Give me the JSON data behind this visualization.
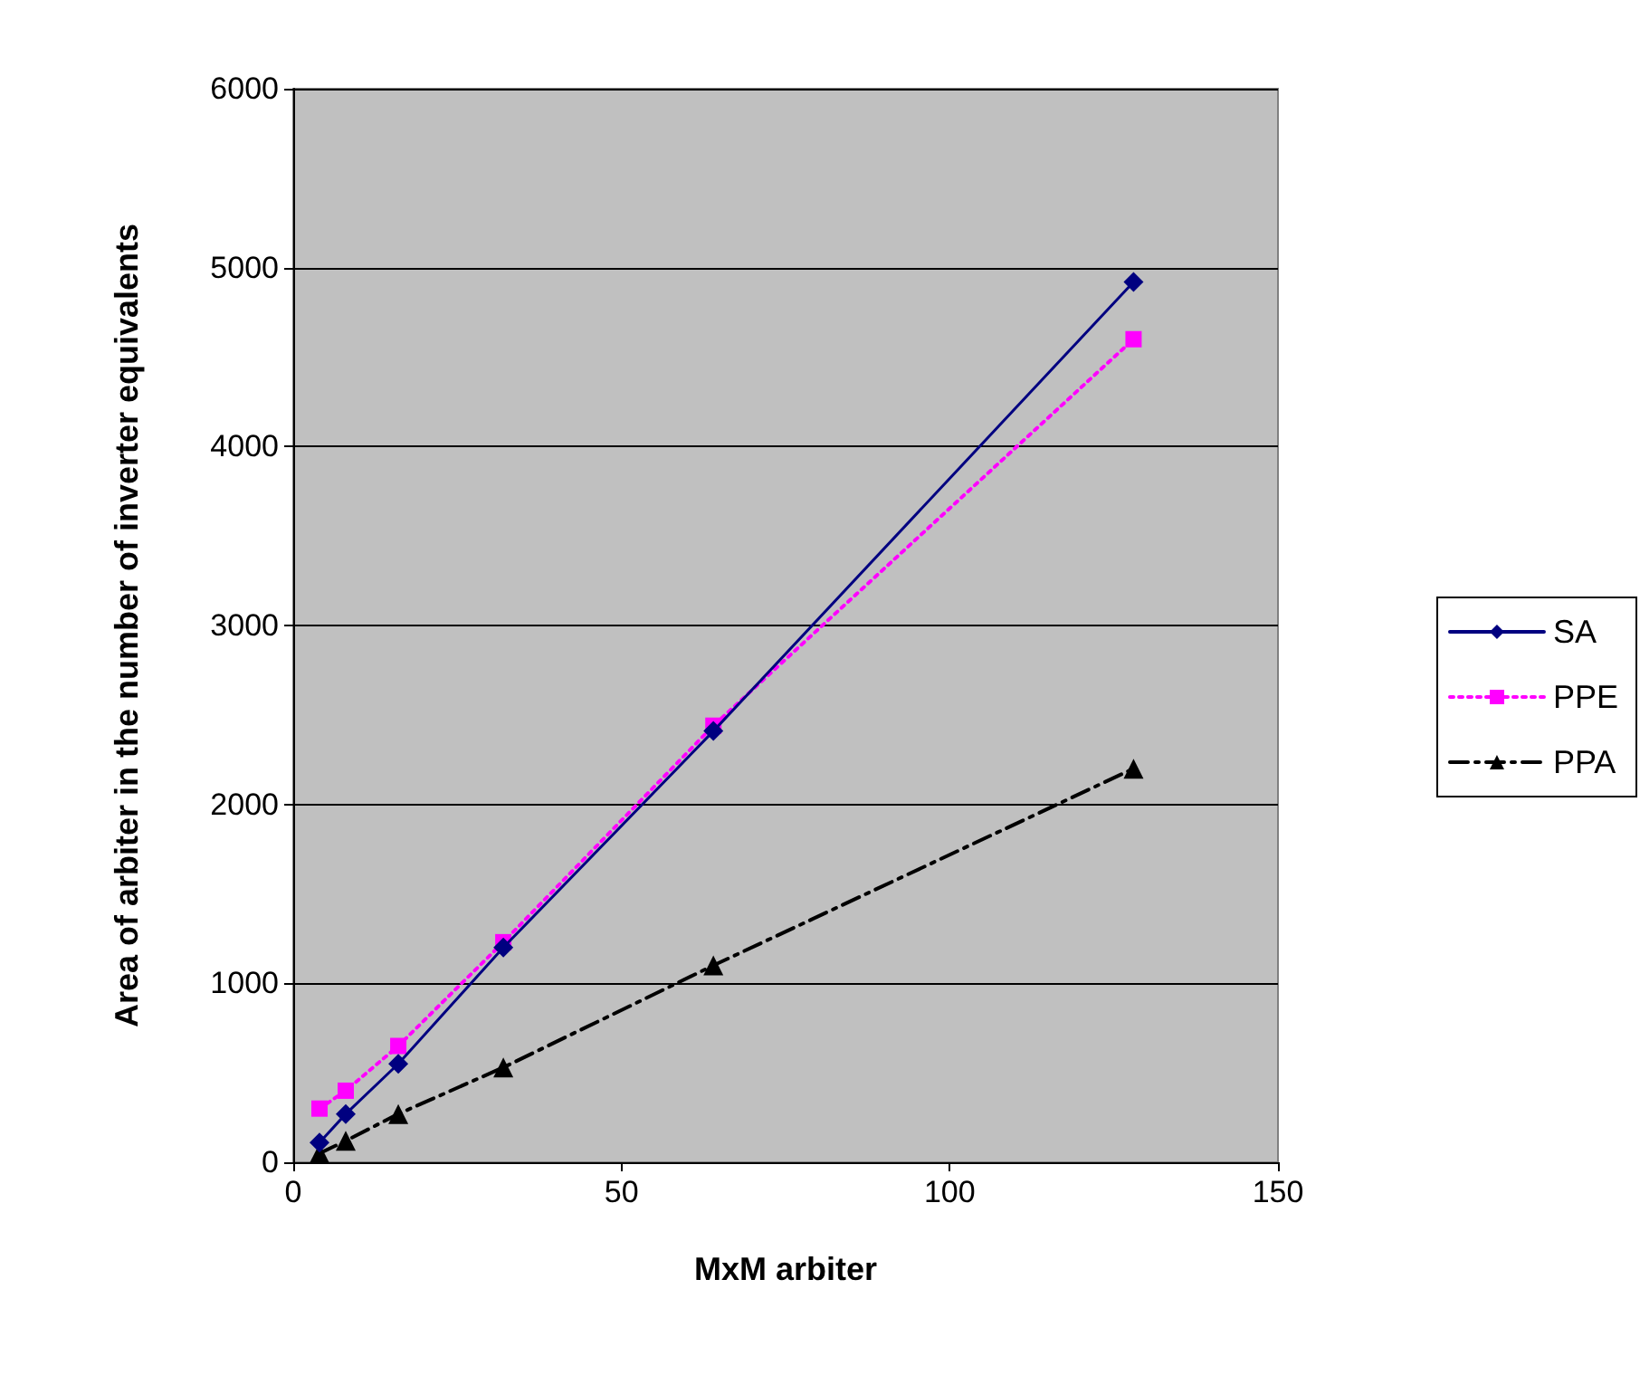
{
  "chart_data": {
    "type": "line",
    "xlabel": "MxM arbiter",
    "ylabel": "Area of arbiter in the number of inverter equivalents",
    "x": [
      4,
      8,
      16,
      32,
      64,
      128
    ],
    "series": [
      {
        "name": "SA",
        "color": "#000080",
        "values": [
          110,
          270,
          550,
          1200,
          2410,
          4920
        ],
        "marker": "diamond",
        "line_style": "solid"
      },
      {
        "name": "PPE",
        "color": "#ff00ff",
        "values": [
          300,
          400,
          650,
          1230,
          2440,
          4600
        ],
        "marker": "square",
        "line_style": "dotted"
      },
      {
        "name": "PPA",
        "color": "#000000",
        "values": [
          50,
          120,
          270,
          530,
          1100,
          2200
        ],
        "marker": "triangle",
        "line_style": "dashdot"
      }
    ],
    "xlim": [
      0,
      150
    ],
    "xticks": [
      0,
      50,
      100,
      150
    ],
    "ylim": [
      0,
      6000
    ],
    "yticks": [
      0,
      1000,
      2000,
      3000,
      4000,
      5000,
      6000
    ],
    "grid": "y",
    "legend": "right"
  }
}
